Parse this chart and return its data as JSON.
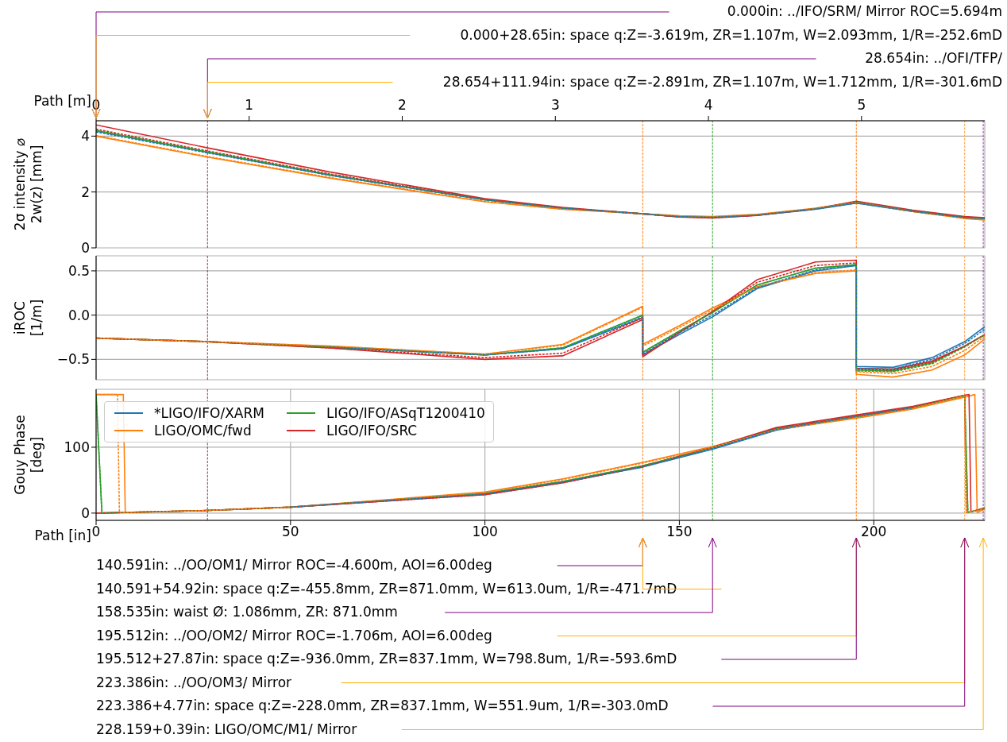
{
  "chart_data": [
    {
      "type": "line",
      "ylabel": "2σ intensity ⌀\n2w(z) [mm]",
      "x2label": "Path [m]",
      "x2lim": [
        0,
        5.805
      ],
      "x2ticks": [
        0,
        1,
        2,
        3,
        4,
        5
      ],
      "xlim": [
        0,
        228.549
      ],
      "xticks": [
        0,
        50,
        100,
        150,
        200
      ],
      "ylim": [
        0,
        4.55
      ],
      "yticks": [
        0,
        2,
        4
      ],
      "grid": true,
      "tick_labels": "y",
      "line_style": "solid",
      "x": [
        0,
        28.654,
        60,
        100,
        120,
        140.591,
        150,
        158.535,
        170,
        185,
        195.512,
        210,
        223.386,
        228.549
      ],
      "series": [
        {
          "color": "#1f77b4",
          "values": [
            4.18,
            3.42,
            2.6,
            1.72,
            1.42,
            1.22,
            1.12,
            1.09,
            1.17,
            1.38,
            1.6,
            1.3,
            1.08,
            1.05
          ]
        },
        {
          "color": "#ff7f0e",
          "values": [
            4.0,
            3.25,
            2.5,
            1.65,
            1.38,
            1.22,
            1.15,
            1.12,
            1.2,
            1.42,
            1.64,
            1.3,
            1.05,
            1.0
          ]
        },
        {
          "color": "#2ca02c",
          "values": [
            4.2,
            3.43,
            2.62,
            1.72,
            1.42,
            1.22,
            1.12,
            1.09,
            1.18,
            1.4,
            1.63,
            1.32,
            1.09,
            1.06
          ]
        },
        {
          "color": "#d62728",
          "values": [
            4.4,
            3.58,
            2.72,
            1.76,
            1.45,
            1.22,
            1.1,
            1.07,
            1.16,
            1.4,
            1.67,
            1.35,
            1.12,
            1.08
          ]
        },
        {
          "color": "#1f77b4",
          "line_style": "dashed",
          "values": [
            4.15,
            3.4,
            2.6,
            1.72,
            1.42,
            1.22,
            1.12,
            1.09,
            1.17,
            1.39,
            1.61,
            1.31,
            1.08,
            1.05
          ]
        },
        {
          "color": "#ff7f0e",
          "line_style": "dashed",
          "values": [
            4.02,
            3.27,
            2.52,
            1.66,
            1.39,
            1.22,
            1.14,
            1.11,
            1.19,
            1.41,
            1.63,
            1.3,
            1.06,
            1.01
          ]
        },
        {
          "color": "#2ca02c",
          "line_style": "dashed",
          "values": [
            4.2,
            3.44,
            2.62,
            1.72,
            1.42,
            1.22,
            1.12,
            1.09,
            1.18,
            1.4,
            1.63,
            1.32,
            1.09,
            1.06
          ]
        },
        {
          "color": "#d62728",
          "line_style": "dashed",
          "values": [
            4.25,
            3.47,
            2.65,
            1.74,
            1.43,
            1.22,
            1.11,
            1.08,
            1.17,
            1.4,
            1.65,
            1.33,
            1.1,
            1.07
          ]
        }
      ],
      "ref_lines": [
        {
          "axis": "x",
          "value": 28.654,
          "color": "#a0305f",
          "line_style": "dashed"
        },
        {
          "axis": "x",
          "value": 140.591,
          "color": "#ff7f0e",
          "line_style": "dashed"
        },
        {
          "axis": "x",
          "value": 158.535,
          "color": "#2ca02c",
          "line_style": "dashed"
        },
        {
          "axis": "x",
          "value": 195.512,
          "color": "#ff7f0e",
          "line_style": "dashed"
        },
        {
          "axis": "x",
          "value": 223.386,
          "color": "#ff9f40",
          "line_style": "dashed"
        },
        {
          "axis": "x",
          "value": 228.159,
          "color": "#9b30b0",
          "line_style": "dashed"
        }
      ],
      "annotations": [
        "0.000in: ../IFO/SRM/ Mirror ROC=5.694m",
        "0.000+28.65in: space q:Z=-3.619m, ZR=1.107m, W=2.093mm, 1/R=-252.6mD",
        "28.654in: ../OFI/TFP/",
        "28.654+111.94in: space q:Z=-2.891m, ZR=1.107m, W=1.712mm, 1/R=-301.6mD"
      ]
    },
    {
      "type": "line",
      "ylabel": "iROC\n[1/m]",
      "xlim": [
        0,
        228.549
      ],
      "xticks": [
        0,
        50,
        100,
        150,
        200
      ],
      "ylim": [
        -0.73,
        0.67
      ],
      "yticks": [
        {
          "value": -0.5,
          "label": "−0.5"
        },
        {
          "value": 0,
          "label": "0.0"
        },
        {
          "value": 0.5,
          "label": "0.5"
        }
      ],
      "grid": true,
      "tick_labels": "y",
      "line_style": "solid",
      "x": [
        0,
        28.654,
        60,
        100,
        120,
        140.591,
        140.591,
        150,
        158.535,
        170,
        185,
        195.512,
        195.512,
        205,
        215,
        223.386,
        228.549
      ],
      "series": [
        {
          "color": "#1f77b4",
          "values": [
            null,
            null,
            -0.36,
            -0.45,
            -0.38,
            -0.03,
            -0.45,
            -0.22,
            -0.02,
            0.3,
            0.5,
            0.56,
            -0.58,
            -0.59,
            -0.48,
            -0.3,
            -0.13
          ]
        },
        {
          "color": "#ff7f0e",
          "values": [
            -0.26,
            -0.3,
            -0.35,
            -0.44,
            -0.33,
            0.1,
            -0.33,
            -0.12,
            0.08,
            0.32,
            0.47,
            0.5,
            -0.67,
            -0.7,
            -0.62,
            -0.45,
            -0.27
          ]
        },
        {
          "color": "#2ca02c",
          "values": [
            -0.26,
            -0.3,
            -0.36,
            -0.45,
            -0.37,
            0.0,
            -0.42,
            -0.18,
            0.03,
            0.34,
            0.53,
            0.57,
            -0.62,
            -0.63,
            -0.54,
            -0.35,
            -0.22
          ]
        },
        {
          "color": "#d62728",
          "values": [
            -0.26,
            -0.3,
            -0.37,
            -0.5,
            -0.46,
            -0.05,
            -0.47,
            -0.2,
            0.04,
            0.4,
            0.6,
            0.62,
            -0.6,
            -0.61,
            -0.52,
            -0.35,
            -0.22
          ]
        },
        {
          "color": "#1f77b4",
          "line_style": "dashed",
          "values": [
            null,
            null,
            -0.36,
            -0.45,
            -0.38,
            -0.02,
            -0.44,
            -0.2,
            0.0,
            0.31,
            0.51,
            0.56,
            -0.6,
            -0.61,
            -0.5,
            -0.32,
            -0.16
          ]
        },
        {
          "color": "#ff7f0e",
          "line_style": "dashed",
          "values": [
            -0.26,
            -0.3,
            -0.35,
            -0.44,
            -0.34,
            0.09,
            -0.35,
            -0.14,
            0.06,
            0.32,
            0.48,
            0.51,
            -0.64,
            -0.66,
            -0.58,
            -0.4,
            -0.24
          ]
        },
        {
          "color": "#2ca02c",
          "line_style": "dashed",
          "values": [
            -0.26,
            -0.3,
            -0.36,
            -0.45,
            -0.37,
            0.0,
            -0.42,
            -0.18,
            0.03,
            0.34,
            0.53,
            0.57,
            -0.63,
            -0.64,
            -0.55,
            -0.36,
            -0.22
          ]
        },
        {
          "color": "#d62728",
          "line_style": "dashed",
          "values": [
            -0.26,
            -0.3,
            -0.37,
            -0.48,
            -0.43,
            -0.03,
            -0.45,
            -0.19,
            0.04,
            0.37,
            0.56,
            0.59,
            -0.61,
            -0.62,
            -0.53,
            -0.35,
            -0.22
          ]
        }
      ],
      "ref_lines": [
        {
          "axis": "x",
          "value": 28.654,
          "color": "#a0305f",
          "line_style": "dashed"
        },
        {
          "axis": "x",
          "value": 140.591,
          "color": "#ff7f0e",
          "line_style": "dashed"
        },
        {
          "axis": "x",
          "value": 158.535,
          "color": "#2ca02c",
          "line_style": "dashed"
        },
        {
          "axis": "x",
          "value": 195.512,
          "color": "#ff7f0e",
          "line_style": "dashed"
        },
        {
          "axis": "x",
          "value": 223.386,
          "color": "#ff9f40",
          "line_style": "dashed"
        },
        {
          "axis": "x",
          "value": 228.159,
          "color": "#9b30b0",
          "line_style": "dashed"
        }
      ]
    },
    {
      "type": "line",
      "ylabel": "Gouy Phase\n[deg]",
      "xlabel": "Path [in]",
      "xlim": [
        0,
        228.549
      ],
      "xticks": [
        0,
        50,
        100,
        150,
        200
      ],
      "ylim": [
        -11,
        188
      ],
      "yticks": [
        0,
        100
      ],
      "grid": true,
      "legend": "top left",
      "line_style": "solid",
      "series": [
        {
          "name": "*LIGO/IFO/XARM",
          "color": "#1f77b4",
          "x": [
            100,
            120,
            140.591,
            158.535,
            175,
            195.512,
            210
          ],
          "values": [
            29,
            47,
            70,
            97,
            126,
            146,
            160
          ]
        },
        {
          "name": "LIGO/OMC/fwd",
          "color": "#ff7f0e",
          "x": [
            0,
            7,
            7.5,
            28.654,
            50,
            100,
            120,
            140.591,
            158.535,
            175,
            195.512,
            210,
            223.386,
            226,
            226.6,
            228.549
          ],
          "values": [
            180,
            180,
            1,
            4,
            9,
            32,
            52,
            77,
            101,
            127,
            144,
            158,
            176,
            180,
            1,
            6
          ]
        },
        {
          "name": "LIGO/IFO/ASqT1200410",
          "color": "#2ca02c",
          "x": [
            0,
            1.5,
            28.654,
            50,
            100,
            120,
            140.591,
            158.535,
            175,
            195.512,
            210,
            223.386,
            224.2,
            228.549
          ],
          "values": [
            180,
            0,
            4,
            9,
            30,
            48,
            72,
            99,
            128,
            146,
            160,
            178,
            1,
            7
          ]
        },
        {
          "name": "LIGO/IFO/SRC",
          "color": "#d62728",
          "x": [
            0,
            28.654,
            50,
            100,
            120,
            140.591,
            158.535,
            175,
            195.512,
            210,
            223.386,
            224.5,
            225,
            228.549
          ],
          "values": [
            0,
            4,
            9,
            28,
            46,
            71,
            100,
            130,
            149,
            162,
            179,
            180,
            2,
            8
          ]
        },
        {
          "color": "#1f77b4",
          "line_style": "dashed",
          "x": [
            50,
            100,
            120,
            140.591,
            158.535,
            175,
            195.512,
            210
          ],
          "values": [
            9,
            29,
            47,
            70,
            98,
            127,
            147,
            160
          ]
        },
        {
          "color": "#ff7f0e",
          "line_style": "dashed",
          "x": [
            0,
            5.5,
            6,
            28.654,
            50,
            100,
            120,
            140.591,
            158.535,
            175,
            195.512,
            210,
            223.386,
            223.8,
            228.549
          ],
          "values": [
            180,
            180,
            1,
            4,
            9,
            31,
            51,
            76,
            100,
            127,
            145,
            159,
            178,
            1,
            6
          ]
        },
        {
          "color": "#2ca02c",
          "line_style": "dashed",
          "x": [
            0,
            1.5,
            28.654,
            50,
            100,
            120,
            140.591,
            158.535,
            175,
            195.512,
            210,
            223.386,
            224.2,
            228.549
          ],
          "values": [
            180,
            0,
            4,
            9,
            30,
            48,
            72,
            99,
            128,
            146,
            160,
            178,
            1,
            7
          ]
        },
        {
          "color": "#d62728",
          "line_style": "dashed",
          "x": [
            0,
            28.654,
            50,
            100,
            120,
            140.591,
            158.535,
            175,
            195.512,
            210,
            223.386,
            223.8,
            228.549
          ],
          "values": [
            0,
            4,
            9,
            28,
            46,
            71,
            100,
            129,
            148,
            161,
            179,
            1,
            7
          ]
        }
      ],
      "ref_lines": [
        {
          "axis": "x",
          "value": 28.654,
          "color": "#a0305f",
          "line_style": "dashed"
        },
        {
          "axis": "x",
          "value": 140.591,
          "color": "#ff7f0e",
          "line_style": "dashed"
        },
        {
          "axis": "x",
          "value": 158.535,
          "color": "#2ca02c",
          "line_style": "dashed"
        },
        {
          "axis": "x",
          "value": 195.512,
          "color": "#ff7f0e",
          "line_style": "dashed"
        },
        {
          "axis": "x",
          "value": 223.386,
          "color": "#ff9f40",
          "line_style": "dashed"
        },
        {
          "axis": "x",
          "value": 228.159,
          "color": "#9b30b0",
          "line_style": "dashed"
        }
      ],
      "annotations": [
        "140.591in: ../OO/OM1/ Mirror ROC=-4.600m, AOI=6.00deg",
        "140.591+54.92in: space q:Z=-455.8mm, ZR=871.0mm, W=613.0um, 1/R=-471.7mD",
        "158.535in: waist Ø: 1.086mm, ZR: 871.0mm",
        "195.512in: ../OO/OM2/ Mirror ROC=-1.706m, AOI=6.00deg",
        "195.512+27.87in: space q:Z=-936.0mm, ZR=837.1mm, W=798.8um, 1/R=-593.6mD",
        "223.386in: ../OO/OM3/ Mirror",
        "223.386+4.77in: space q:Z=-228.0mm, ZR=837.1mm, W=551.9um, 1/R=-303.0mD",
        "228.159+0.39in: LIGO/OMC/M1/ Mirror"
      ]
    }
  ]
}
